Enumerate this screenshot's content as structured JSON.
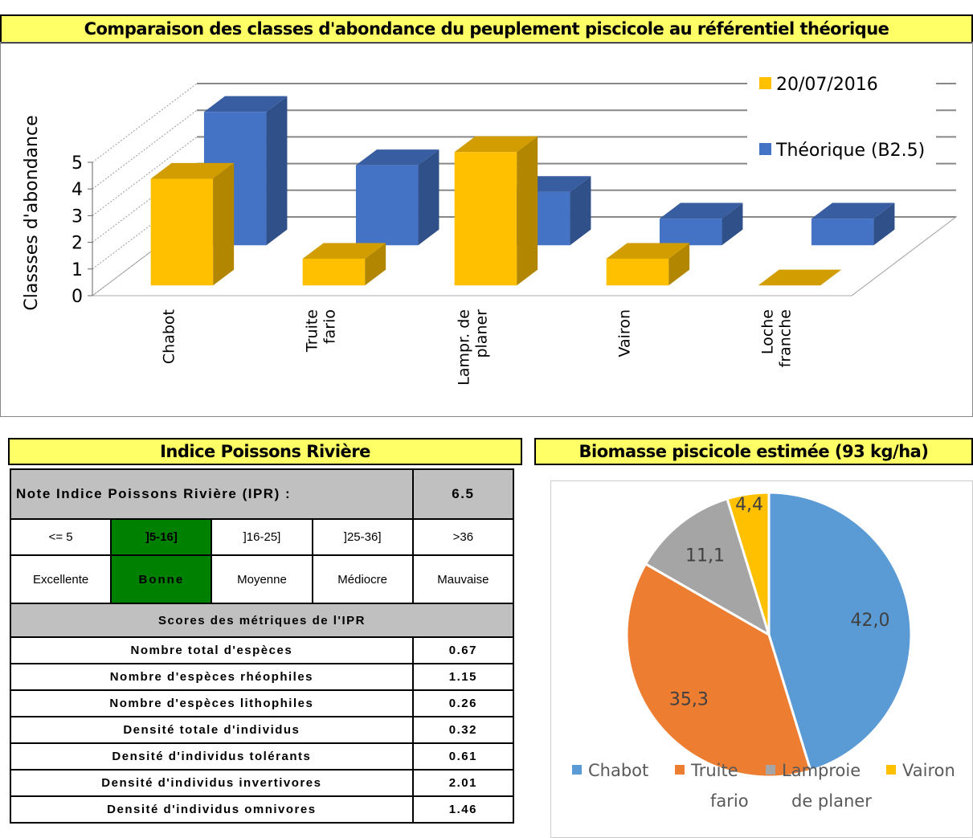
{
  "chart_data": [
    {
      "type": "bar3d",
      "title": "Comparaison des classes d'abondance du peuplement piscicole au référentiel théorique",
      "y_label": "Classses d'abondance",
      "categories": [
        [
          "Chabot"
        ],
        [
          "Truite",
          "fario"
        ],
        [
          "Lampr. de",
          "planer"
        ],
        [
          "Vairon"
        ],
        [
          "Loche",
          "franche"
        ]
      ],
      "series": [
        {
          "name": "20/07/2016",
          "color": "#ffc000",
          "values": [
            4,
            1,
            5,
            1,
            0
          ]
        },
        {
          "name": "Théorique (B2.5)",
          "color": "#4472c4",
          "values": [
            5,
            3,
            2,
            1,
            1
          ]
        }
      ],
      "ylim": [
        0,
        5
      ],
      "yticks": [
        0,
        1,
        2,
        3,
        4,
        5
      ],
      "grid": true,
      "legend": "top-right"
    },
    {
      "type": "pie",
      "title": "Biomasse piscicole estimée (93 kg/ha)",
      "categories": [
        [
          "Chabot"
        ],
        [
          "Truite",
          "fario"
        ],
        [
          "Lamproie",
          "de planer"
        ],
        [
          "Vairon"
        ]
      ],
      "values": [
        42.0,
        35.3,
        11.1,
        4.4
      ],
      "value_labels": [
        "42,0",
        "35,3",
        "11,1",
        "4,4"
      ],
      "colors": [
        "#5b9bd5",
        "#ed7d31",
        "#a5a5a5",
        "#ffc000"
      ],
      "legend": "bottom"
    }
  ],
  "ipr": {
    "title": "Indice Poissons Rivière",
    "note_label": "Note Indice Poissons Rivière (IPR) :",
    "note": "6.5",
    "classes": [
      "<= 5",
      "]5-16]",
      "]16-25]",
      "]25-36]",
      ">36"
    ],
    "class_names": [
      "Excellente",
      "Bonne",
      "Moyenne",
      "Médiocre",
      "Mauvaise"
    ],
    "highlighted_class": 1,
    "highlight_color": "#008000",
    "metrics_title": "Scores des métriques de l'IPR",
    "metrics": [
      [
        "Nombre total d'espèces",
        "0.67"
      ],
      [
        "Nombre d'espèces rhéophiles",
        "1.15"
      ],
      [
        "Nombre d'espèces lithophiles",
        "0.26"
      ],
      [
        "Densité totale d'individus",
        "0.32"
      ],
      [
        "Densité d'individus tolérants",
        "0.61"
      ],
      [
        "Densité d'individus invertivores",
        "2.01"
      ],
      [
        "Densité d'individus omnivores",
        "1.46"
      ]
    ]
  }
}
